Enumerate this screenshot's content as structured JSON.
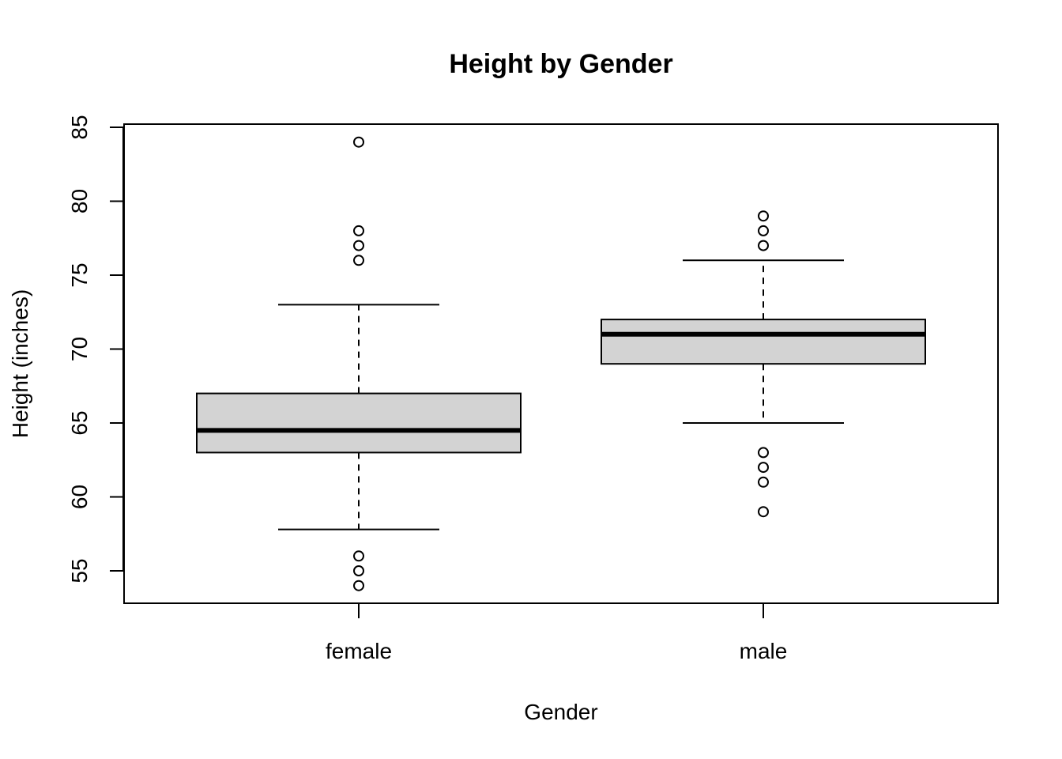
{
  "chart_data": {
    "type": "boxplot",
    "title": "Height by Gender",
    "xlabel": "Gender",
    "ylabel": "Height (inches)",
    "categories": [
      "female",
      "male"
    ],
    "yticks": [
      55,
      60,
      65,
      70,
      75,
      80,
      85
    ],
    "ylim": [
      52.8,
      85.2
    ],
    "grid": false,
    "box_fill": "#d3d3d3",
    "line_color": "#000000",
    "boxes": [
      {
        "category": "female",
        "whisker_low": 57.8,
        "q1": 63,
        "median": 64.5,
        "q3": 67,
        "whisker_high": 73,
        "outliers": [
          84,
          78,
          77,
          76,
          56,
          55,
          54
        ]
      },
      {
        "category": "male",
        "whisker_low": 65,
        "q1": 69,
        "median": 71,
        "q3": 72,
        "whisker_high": 76,
        "outliers": [
          79,
          78,
          77,
          63,
          62,
          61,
          59
        ]
      }
    ]
  }
}
